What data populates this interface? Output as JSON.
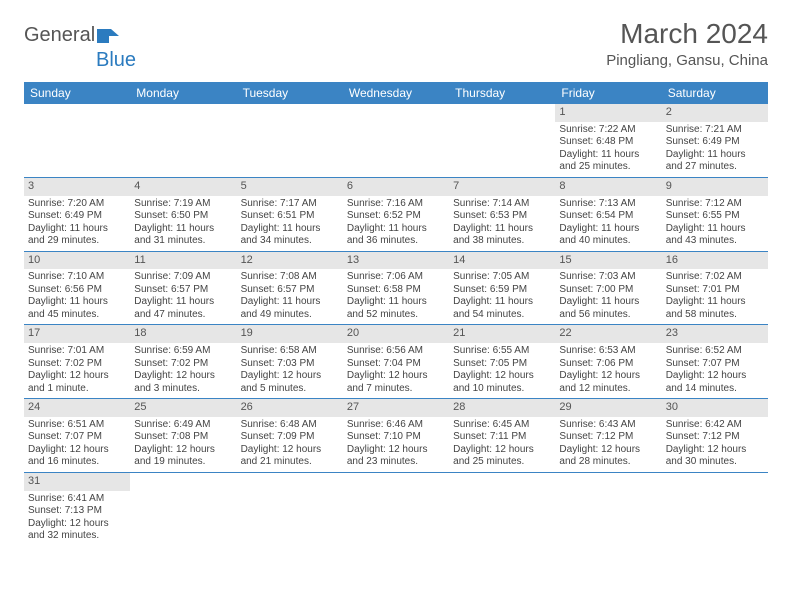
{
  "brand": {
    "name_part1": "General",
    "name_part2": "Blue"
  },
  "title": "March 2024",
  "location": "Pingliang, Gansu, China",
  "colors": {
    "header_bg": "#3b84c4",
    "daynum_bg": "#e6e6e6",
    "text": "#444444",
    "rule": "#3b84c4"
  },
  "daysOfWeek": [
    "Sunday",
    "Monday",
    "Tuesday",
    "Wednesday",
    "Thursday",
    "Friday",
    "Saturday"
  ],
  "weeks": [
    [
      {
        "blank": true
      },
      {
        "blank": true
      },
      {
        "blank": true
      },
      {
        "blank": true
      },
      {
        "blank": true
      },
      {
        "n": "1",
        "sunrise": "Sunrise: 7:22 AM",
        "sunset": "Sunset: 6:48 PM",
        "daylight": "Daylight: 11 hours and 25 minutes."
      },
      {
        "n": "2",
        "sunrise": "Sunrise: 7:21 AM",
        "sunset": "Sunset: 6:49 PM",
        "daylight": "Daylight: 11 hours and 27 minutes."
      }
    ],
    [
      {
        "n": "3",
        "sunrise": "Sunrise: 7:20 AM",
        "sunset": "Sunset: 6:49 PM",
        "daylight": "Daylight: 11 hours and 29 minutes."
      },
      {
        "n": "4",
        "sunrise": "Sunrise: 7:19 AM",
        "sunset": "Sunset: 6:50 PM",
        "daylight": "Daylight: 11 hours and 31 minutes."
      },
      {
        "n": "5",
        "sunrise": "Sunrise: 7:17 AM",
        "sunset": "Sunset: 6:51 PM",
        "daylight": "Daylight: 11 hours and 34 minutes."
      },
      {
        "n": "6",
        "sunrise": "Sunrise: 7:16 AM",
        "sunset": "Sunset: 6:52 PM",
        "daylight": "Daylight: 11 hours and 36 minutes."
      },
      {
        "n": "7",
        "sunrise": "Sunrise: 7:14 AM",
        "sunset": "Sunset: 6:53 PM",
        "daylight": "Daylight: 11 hours and 38 minutes."
      },
      {
        "n": "8",
        "sunrise": "Sunrise: 7:13 AM",
        "sunset": "Sunset: 6:54 PM",
        "daylight": "Daylight: 11 hours and 40 minutes."
      },
      {
        "n": "9",
        "sunrise": "Sunrise: 7:12 AM",
        "sunset": "Sunset: 6:55 PM",
        "daylight": "Daylight: 11 hours and 43 minutes."
      }
    ],
    [
      {
        "n": "10",
        "sunrise": "Sunrise: 7:10 AM",
        "sunset": "Sunset: 6:56 PM",
        "daylight": "Daylight: 11 hours and 45 minutes."
      },
      {
        "n": "11",
        "sunrise": "Sunrise: 7:09 AM",
        "sunset": "Sunset: 6:57 PM",
        "daylight": "Daylight: 11 hours and 47 minutes."
      },
      {
        "n": "12",
        "sunrise": "Sunrise: 7:08 AM",
        "sunset": "Sunset: 6:57 PM",
        "daylight": "Daylight: 11 hours and 49 minutes."
      },
      {
        "n": "13",
        "sunrise": "Sunrise: 7:06 AM",
        "sunset": "Sunset: 6:58 PM",
        "daylight": "Daylight: 11 hours and 52 minutes."
      },
      {
        "n": "14",
        "sunrise": "Sunrise: 7:05 AM",
        "sunset": "Sunset: 6:59 PM",
        "daylight": "Daylight: 11 hours and 54 minutes."
      },
      {
        "n": "15",
        "sunrise": "Sunrise: 7:03 AM",
        "sunset": "Sunset: 7:00 PM",
        "daylight": "Daylight: 11 hours and 56 minutes."
      },
      {
        "n": "16",
        "sunrise": "Sunrise: 7:02 AM",
        "sunset": "Sunset: 7:01 PM",
        "daylight": "Daylight: 11 hours and 58 minutes."
      }
    ],
    [
      {
        "n": "17",
        "sunrise": "Sunrise: 7:01 AM",
        "sunset": "Sunset: 7:02 PM",
        "daylight": "Daylight: 12 hours and 1 minute."
      },
      {
        "n": "18",
        "sunrise": "Sunrise: 6:59 AM",
        "sunset": "Sunset: 7:02 PM",
        "daylight": "Daylight: 12 hours and 3 minutes."
      },
      {
        "n": "19",
        "sunrise": "Sunrise: 6:58 AM",
        "sunset": "Sunset: 7:03 PM",
        "daylight": "Daylight: 12 hours and 5 minutes."
      },
      {
        "n": "20",
        "sunrise": "Sunrise: 6:56 AM",
        "sunset": "Sunset: 7:04 PM",
        "daylight": "Daylight: 12 hours and 7 minutes."
      },
      {
        "n": "21",
        "sunrise": "Sunrise: 6:55 AM",
        "sunset": "Sunset: 7:05 PM",
        "daylight": "Daylight: 12 hours and 10 minutes."
      },
      {
        "n": "22",
        "sunrise": "Sunrise: 6:53 AM",
        "sunset": "Sunset: 7:06 PM",
        "daylight": "Daylight: 12 hours and 12 minutes."
      },
      {
        "n": "23",
        "sunrise": "Sunrise: 6:52 AM",
        "sunset": "Sunset: 7:07 PM",
        "daylight": "Daylight: 12 hours and 14 minutes."
      }
    ],
    [
      {
        "n": "24",
        "sunrise": "Sunrise: 6:51 AM",
        "sunset": "Sunset: 7:07 PM",
        "daylight": "Daylight: 12 hours and 16 minutes."
      },
      {
        "n": "25",
        "sunrise": "Sunrise: 6:49 AM",
        "sunset": "Sunset: 7:08 PM",
        "daylight": "Daylight: 12 hours and 19 minutes."
      },
      {
        "n": "26",
        "sunrise": "Sunrise: 6:48 AM",
        "sunset": "Sunset: 7:09 PM",
        "daylight": "Daylight: 12 hours and 21 minutes."
      },
      {
        "n": "27",
        "sunrise": "Sunrise: 6:46 AM",
        "sunset": "Sunset: 7:10 PM",
        "daylight": "Daylight: 12 hours and 23 minutes."
      },
      {
        "n": "28",
        "sunrise": "Sunrise: 6:45 AM",
        "sunset": "Sunset: 7:11 PM",
        "daylight": "Daylight: 12 hours and 25 minutes."
      },
      {
        "n": "29",
        "sunrise": "Sunrise: 6:43 AM",
        "sunset": "Sunset: 7:12 PM",
        "daylight": "Daylight: 12 hours and 28 minutes."
      },
      {
        "n": "30",
        "sunrise": "Sunrise: 6:42 AM",
        "sunset": "Sunset: 7:12 PM",
        "daylight": "Daylight: 12 hours and 30 minutes."
      }
    ],
    [
      {
        "n": "31",
        "sunrise": "Sunrise: 6:41 AM",
        "sunset": "Sunset: 7:13 PM",
        "daylight": "Daylight: 12 hours and 32 minutes."
      },
      {
        "blank": true
      },
      {
        "blank": true
      },
      {
        "blank": true
      },
      {
        "blank": true
      },
      {
        "blank": true
      },
      {
        "blank": true
      }
    ]
  ]
}
